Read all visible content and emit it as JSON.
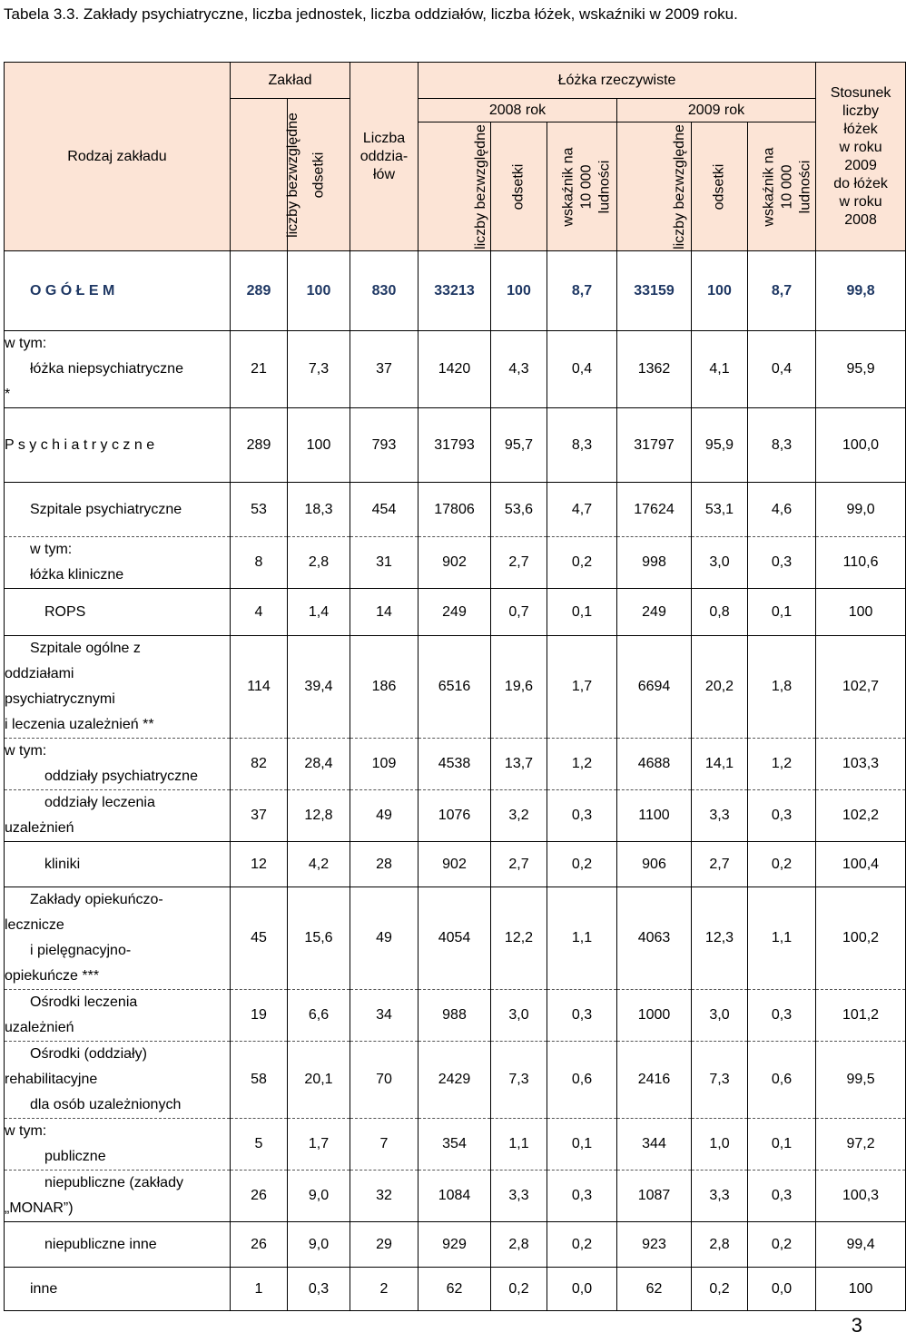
{
  "caption": "Tabela 3.3. Zakłady psychiatryczne, liczba jednostek, liczba oddziałów, liczba łóżek, wskaźniki w 2009 roku.",
  "header": {
    "rodzaj": "Rodzaj zakładu",
    "zaklad": "Zakład",
    "liczby_bezwzgledne": "liczby bezwzględne",
    "odsetki": "odsetki",
    "liczba_oddzialow_1": "Liczba",
    "liczba_oddzialow_2": "oddzia-",
    "liczba_oddzialow_3": "łów",
    "lozka": "Łóżka rzeczywiste",
    "rok2008": "2008 rok",
    "rok2009": "2009 rok",
    "wsk1": "wskaźnik na",
    "wsk2": "10 000",
    "wsk3": "ludności",
    "stosunek": [
      "Stosunek",
      "liczby",
      "łóżek",
      "w roku",
      "2009",
      "do łóżek",
      "w roku",
      "2008"
    ]
  },
  "rows": [
    {
      "label": [
        "O G Ó Ł E M"
      ],
      "values": [
        "289",
        "100",
        "830",
        "33213",
        "100",
        "8,7",
        "33159",
        "100",
        "8,7",
        "99,8"
      ]
    },
    {
      "label": [
        "w tym:",
        "łóżka niepsychiatryczne",
        "*"
      ],
      "values": [
        "21",
        "7,3",
        "37",
        "1420",
        "4,3",
        "0,4",
        "1362",
        "4,1",
        "0,4",
        "95,9"
      ]
    },
    {
      "label": [
        "P s y c h i a t r y c z n e"
      ],
      "values": [
        "289",
        "100",
        "793",
        "31793",
        "95,7",
        "8,3",
        "31797",
        "95,9",
        "8,3",
        "100,0"
      ]
    },
    {
      "label": [
        "Szpitale psychiatryczne"
      ],
      "values": [
        "53",
        "18,3",
        "454",
        "17806",
        "53,6",
        "4,7",
        "17624",
        "53,1",
        "4,6",
        "99,0"
      ]
    },
    {
      "label": [
        "w tym:",
        "łóżka kliniczne"
      ],
      "values": [
        "8",
        "2,8",
        "31",
        "902",
        "2,7",
        "0,2",
        "998",
        "3,0",
        "0,3",
        "110,6"
      ]
    },
    {
      "label": [
        "ROPS"
      ],
      "values": [
        "4",
        "1,4",
        "14",
        "249",
        "0,7",
        "0,1",
        "249",
        "0,8",
        "0,1",
        "100"
      ]
    },
    {
      "label": [
        "Szpitale ogólne z",
        "oddziałami",
        "psychiatrycznymi",
        "i leczenia uzależnień  **"
      ],
      "values": [
        "114",
        "39,4",
        "186",
        "6516",
        "19,6",
        "1,7",
        "6694",
        "20,2",
        "1,8",
        "102,7"
      ]
    },
    {
      "label": [
        "w tym:",
        "oddziały psychiatryczne"
      ],
      "values": [
        "82",
        "28,4",
        "109",
        "4538",
        "13,7",
        "1,2",
        "4688",
        "14,1",
        "1,2",
        "103,3"
      ]
    },
    {
      "label": [
        "oddziały leczenia",
        "uzależnień"
      ],
      "values": [
        "37",
        "12,8",
        "49",
        "1076",
        "3,2",
        "0,3",
        "1100",
        "3,3",
        "0,3",
        "102,2"
      ]
    },
    {
      "label": [
        "kliniki"
      ],
      "values": [
        "12",
        "4,2",
        "28",
        "902",
        "2,7",
        "0,2",
        "906",
        "2,7",
        "0,2",
        "100,4"
      ]
    },
    {
      "label": [
        "Zakłady opiekuńczo-",
        "lecznicze",
        "i pielęgnacyjno-",
        "opiekuńcze  ***"
      ],
      "values": [
        "45",
        "15,6",
        "49",
        "4054",
        "12,2",
        "1,1",
        "4063",
        "12,3",
        "1,1",
        "100,2"
      ]
    },
    {
      "label": [
        "Ośrodki leczenia",
        "uzależnień"
      ],
      "values": [
        "19",
        "6,6",
        "34",
        "988",
        "3,0",
        "0,3",
        "1000",
        "3,0",
        "0,3",
        "101,2"
      ]
    },
    {
      "label": [
        "Ośrodki (oddziały)",
        "rehabilitacyjne",
        "dla osób uzależnionych"
      ],
      "values": [
        "58",
        "20,1",
        "70",
        "2429",
        "7,3",
        "0,6",
        "2416",
        "7,3",
        "0,6",
        "99,5"
      ]
    },
    {
      "label": [
        "w tym:",
        "publiczne"
      ],
      "values": [
        "5",
        "1,7",
        "7",
        "354",
        "1,1",
        "0,1",
        "344",
        "1,0",
        "0,1",
        "97,2"
      ]
    },
    {
      "label": [
        "niepubliczne (zakłady",
        "„MONAR”)"
      ],
      "values": [
        "26",
        "9,0",
        "32",
        "1084",
        "3,3",
        "0,3",
        "1087",
        "3,3",
        "0,3",
        "100,3"
      ]
    },
    {
      "label": [
        "niepubliczne inne"
      ],
      "values": [
        "26",
        "9,0",
        "29",
        "929",
        "2,8",
        "0,2",
        "923",
        "2,8",
        "0,2",
        "99,4"
      ]
    },
    {
      "label": [
        "inne"
      ],
      "values": [
        "1",
        "0,3",
        "2",
        "62",
        "0,2",
        "0,0",
        "62",
        "0,2",
        "0,0",
        "100"
      ]
    }
  ],
  "page_number": "3"
}
